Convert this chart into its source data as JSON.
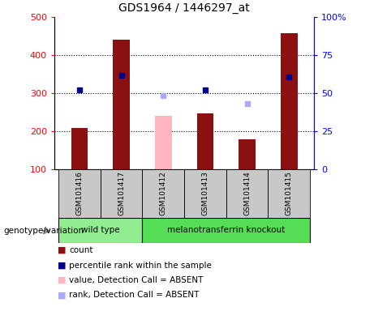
{
  "title": "GDS1964 / 1446297_at",
  "samples": [
    "GSM101416",
    "GSM101417",
    "GSM101412",
    "GSM101413",
    "GSM101414",
    "GSM101415"
  ],
  "bar_values": [
    210,
    440,
    240,
    248,
    180,
    458
  ],
  "bar_colors": [
    "#8B1010",
    "#8B1010",
    "#FFB6C1",
    "#8B1010",
    "#8B1010",
    "#8B1010"
  ],
  "rank_values_left": [
    308,
    348,
    293,
    308,
    272,
    342
  ],
  "rank_colors": [
    "#00008B",
    "#00008B",
    "#AAAAFF",
    "#00008B",
    "#AAAAFF",
    "#00008B"
  ],
  "groups": [
    {
      "label": "wild type",
      "indices": [
        0,
        1
      ],
      "color": "#90EE90"
    },
    {
      "label": "melanotransferrin knockout",
      "indices": [
        2,
        3,
        4,
        5
      ],
      "color": "#55DD55"
    }
  ],
  "ylim_left": [
    100,
    500
  ],
  "ylim_right": [
    0,
    100
  ],
  "yticks_left": [
    100,
    200,
    300,
    400,
    500
  ],
  "yticks_right": [
    0,
    25,
    50,
    75,
    100
  ],
  "yticklabels_right": [
    "0",
    "25",
    "50",
    "75",
    "100%"
  ],
  "grid_lines": [
    200,
    300,
    400
  ],
  "bar_width": 0.4,
  "legend_items": [
    {
      "label": "count",
      "color": "#8B1010"
    },
    {
      "label": "percentile rank within the sample",
      "color": "#00008B"
    },
    {
      "label": "value, Detection Call = ABSENT",
      "color": "#FFB6C1"
    },
    {
      "label": "rank, Detection Call = ABSENT",
      "color": "#AAAAFF"
    }
  ],
  "genotype_label": "genotype/variation",
  "xlabel_bg": "#C8C8C8",
  "absent_bar_indices": [
    2
  ],
  "absent_rank_indices": [
    2,
    4
  ]
}
